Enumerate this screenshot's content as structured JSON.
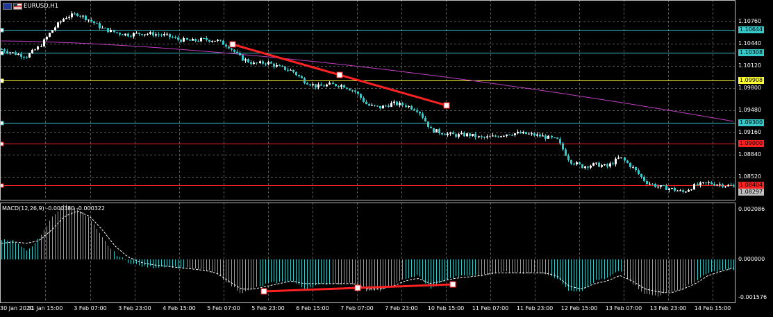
{
  "chart": {
    "symbol_label": "EURUSD,H1",
    "indicator_label": "MACD(12,26,9) -0.000380 -0.000322",
    "flag_icons": [
      "eu-flag-icon",
      "us-flag-icon"
    ]
  },
  "price_axis": {
    "ticks": [
      "1.10760",
      "1.10440",
      "1.10120",
      "1.09800",
      "1.09480",
      "1.09160",
      "1.08840",
      "1.08520"
    ],
    "ylim": [
      1.082,
      1.11
    ]
  },
  "macd_axis": {
    "ticks": [
      "0.002086",
      "0.000000",
      "-0.001576"
    ]
  },
  "level_lines": [
    {
      "name": "level-110644",
      "price": 1.10644,
      "label": "1.10644",
      "color": "#35c9c9"
    },
    {
      "name": "level-110308",
      "price": 1.10308,
      "label": "1.10308",
      "color": "#35c9c9"
    },
    {
      "name": "level-109908",
      "price": 1.09908,
      "label": "1.09908",
      "color": "#ffff33"
    },
    {
      "name": "level-109300",
      "price": 1.093,
      "label": "1.09300",
      "color": "#35c9c9"
    },
    {
      "name": "level-109000",
      "price": 1.09,
      "label": "1.09000",
      "color": "#ff2222"
    },
    {
      "name": "level-108404",
      "price": 1.08404,
      "label": "1.08404",
      "color": "#ff2222"
    }
  ],
  "bid_label": {
    "text": "1.08297",
    "price": 1.08297,
    "color": "#c0c0c0"
  },
  "time_axis": {
    "labels": [
      "30 Jan 2020",
      "31 Jan 15:00",
      "3 Feb 07:00",
      "3 Feb 23:00",
      "4 Feb 15:00",
      "5 Feb 07:00",
      "5 Feb 23:00",
      "6 Feb 15:00",
      "7 Feb 07:00",
      "7 Feb 23:00",
      "10 Feb 15:00",
      "11 Feb 07:00",
      "11 Feb 23:00",
      "12 Feb 15:00",
      "13 Feb 07:00",
      "13 Feb 23:00",
      "14 Feb 15:00"
    ]
  },
  "colors": {
    "bull": "#ffffff",
    "bear": "#35c9c9",
    "ma": "#c040c0",
    "trendline": "#ff2222",
    "grid": "#5a5a5a",
    "hist": "#35c9c9",
    "signal": "#ffffff"
  },
  "chart_data": [
    {
      "type": "candlestick",
      "title": "EURUSD,H1",
      "x": "hourly bars, 30 Jan 2020 to 14 Feb 2020",
      "close_path": [
        1.1036,
        1.103,
        1.1026,
        1.104,
        1.1064,
        1.1082,
        1.1087,
        1.1078,
        1.1066,
        1.106,
        1.1057,
        1.1059,
        1.1058,
        1.1056,
        1.105,
        1.1048,
        1.105,
        1.1049,
        1.104,
        1.1023,
        1.1015,
        1.1017,
        1.101,
        1.1005,
        1.099,
        1.0982,
        1.0985,
        1.0984,
        1.0975,
        1.0955,
        1.0952,
        1.0958,
        1.0955,
        1.0948,
        1.092,
        1.0915,
        1.0912,
        1.0913,
        1.0908,
        1.091,
        1.0914,
        1.0915,
        1.0913,
        1.091,
        1.0905,
        1.0875,
        1.0867,
        1.087,
        1.0867,
        1.088,
        1.0865,
        1.0845,
        1.0838,
        1.0835,
        1.083,
        1.084,
        1.0843,
        1.0841,
        1.0838
      ],
      "moving_average": {
        "start": 1.1048,
        "end": 1.0932
      }
    },
    {
      "type": "bar",
      "title": "MACD(12,26,9) -0.000380 -0.000322",
      "series": [
        {
          "name": "MACD",
          "values": [
            0.00075,
            0.0007,
            0.0003,
            0.0008,
            0.0016,
            0.00205,
            0.0019,
            0.0015,
            0.0008,
            0.0002,
            -0.0001,
            -0.00025,
            -0.0003,
            -0.00025,
            -0.0003,
            -0.00035,
            -0.0004,
            -0.0005,
            -0.0009,
            -0.00125,
            -0.0011,
            -0.0009,
            -0.00085,
            -0.0008,
            -0.0011,
            -0.00095,
            -0.0009,
            -0.0009,
            -0.0009,
            -0.0012,
            -0.00115,
            -0.001,
            -0.0007,
            -0.0006,
            -0.0011,
            -0.0008,
            -0.00065,
            -0.0006,
            -0.0006,
            -0.0005,
            -0.00045,
            -0.0005,
            -0.0005,
            -0.0005,
            -0.0007,
            -0.0012,
            -0.0012,
            -0.0008,
            -0.0007,
            -0.0004,
            -0.0009,
            -0.0013,
            -0.00135,
            -0.0012,
            -0.0011,
            -0.0008,
            -0.0005,
            -0.0004,
            -0.00038
          ]
        },
        {
          "name": "Signal",
          "values": [
            0.0006,
            0.00065,
            0.0006,
            0.0007,
            0.0011,
            0.0016,
            0.0018,
            0.0016,
            0.0011,
            0.0005,
            0.0001,
            -0.0001,
            -0.0002,
            -0.00025,
            -0.0003,
            -0.00035,
            -0.0004,
            -0.0005,
            -0.0008,
            -0.0011,
            -0.0011,
            -0.001,
            -0.0009,
            -0.0008,
            -0.0009,
            -0.0009,
            -0.0009,
            -0.0009,
            -0.0009,
            -0.0011,
            -0.0011,
            -0.001,
            -0.0008,
            -0.0007,
            -0.0009,
            -0.0008,
            -0.0007,
            -0.00065,
            -0.0006,
            -0.0005,
            -0.0005,
            -0.0005,
            -0.0005,
            -0.0005,
            -0.0006,
            -0.001,
            -0.0011,
            -0.0009,
            -0.0008,
            -0.0006,
            -0.0008,
            -0.0011,
            -0.0012,
            -0.00125,
            -0.0011,
            -0.0009,
            -0.0006,
            -0.00045,
            -0.00032
          ]
        }
      ],
      "ylim": [
        -0.001576,
        0.002086
      ]
    }
  ]
}
